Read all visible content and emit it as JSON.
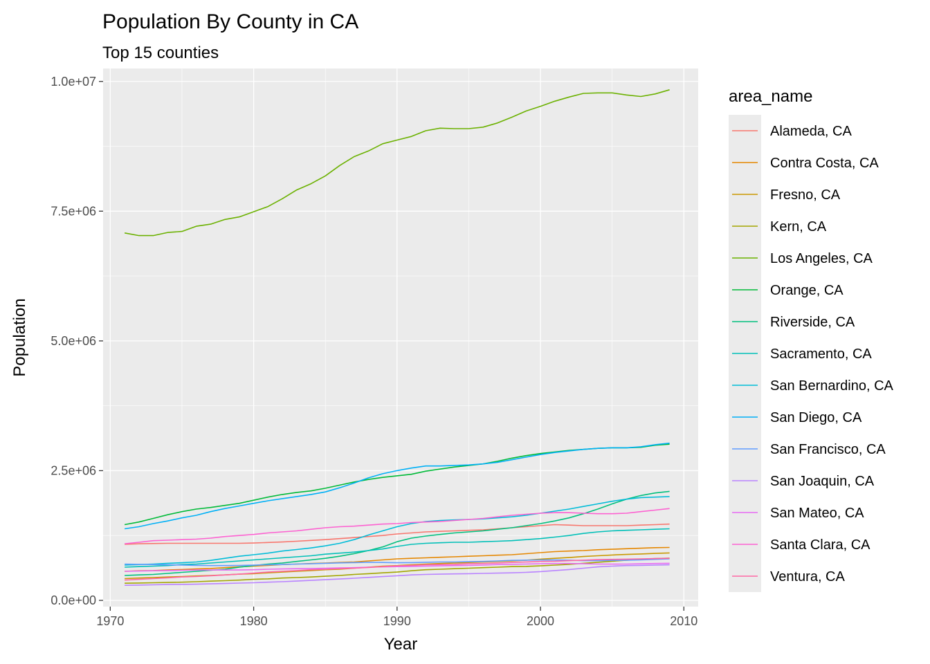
{
  "chart_data": {
    "type": "line",
    "title": "Population By County in CA",
    "subtitle": "Top 15 counties",
    "xlabel": "Year",
    "ylabel": "Population",
    "xlim": [
      1969.5,
      2011
    ],
    "ylim": [
      -120000,
      10250000
    ],
    "x_ticks": [
      1970,
      1980,
      1990,
      2000,
      2010
    ],
    "x_tick_labels": [
      "1970",
      "1980",
      "1990",
      "2000",
      "2010"
    ],
    "y_ticks": [
      0,
      2500000,
      5000000,
      7500000,
      10000000
    ],
    "y_tick_labels": [
      "0.0e+00",
      "2.5e+06",
      "5.0e+06",
      "7.5e+06",
      "1.0e+07"
    ],
    "grid": true,
    "background": "#ebebeb",
    "legend_title": "area_name",
    "legend_position": "right",
    "x": [
      1971,
      1972,
      1973,
      1974,
      1975,
      1976,
      1977,
      1978,
      1979,
      1980,
      1981,
      1982,
      1983,
      1984,
      1985,
      1986,
      1987,
      1988,
      1989,
      1990,
      1991,
      1992,
      1993,
      1994,
      1995,
      1996,
      1997,
      1998,
      1999,
      2000,
      2001,
      2002,
      2003,
      2004,
      2005,
      2006,
      2007,
      2008,
      2009
    ],
    "series": [
      {
        "name": "Alameda, CA",
        "color": "#F8766D",
        "values": [
          1080000,
          1090000,
          1095000,
          1100000,
          1100000,
          1100000,
          1100000,
          1100000,
          1100000,
          1105000,
          1115000,
          1125000,
          1140000,
          1155000,
          1170000,
          1190000,
          1210000,
          1230000,
          1250000,
          1280000,
          1300000,
          1320000,
          1330000,
          1340000,
          1350000,
          1360000,
          1380000,
          1400000,
          1420000,
          1440000,
          1460000,
          1450000,
          1440000,
          1440000,
          1440000,
          1440000,
          1450000,
          1460000,
          1470000
        ]
      },
      {
        "name": "Contra Costa, CA",
        "color": "#E58700",
        "values": [
          560000,
          570000,
          575000,
          585000,
          595000,
          605000,
          615000,
          630000,
          645000,
          660000,
          675000,
          690000,
          700000,
          710000,
          720000,
          730000,
          740000,
          760000,
          780000,
          800000,
          810000,
          820000,
          830000,
          840000,
          850000,
          860000,
          870000,
          880000,
          900000,
          920000,
          940000,
          950000,
          960000,
          975000,
          985000,
          995000,
          1005000,
          1015000,
          1020000
        ]
      },
      {
        "name": "Fresno, CA",
        "color": "#C99800",
        "values": [
          420000,
          430000,
          440000,
          450000,
          460000,
          470000,
          480000,
          490000,
          505000,
          515000,
          530000,
          545000,
          560000,
          575000,
          590000,
          600000,
          620000,
          640000,
          660000,
          670000,
          685000,
          700000,
          710000,
          720000,
          730000,
          740000,
          750000,
          760000,
          775000,
          795000,
          810000,
          825000,
          845000,
          860000,
          875000,
          885000,
          895000,
          905000,
          915000
        ]
      },
      {
        "name": "Kern, CA",
        "color": "#A3A500",
        "values": [
          330000,
          335000,
          340000,
          345000,
          350000,
          360000,
          370000,
          380000,
          390000,
          405000,
          415000,
          430000,
          440000,
          450000,
          465000,
          480000,
          500000,
          515000,
          530000,
          545000,
          570000,
          590000,
          600000,
          610000,
          620000,
          630000,
          640000,
          650000,
          655000,
          665000,
          680000,
          695000,
          715000,
          735000,
          755000,
          775000,
          790000,
          805000,
          815000
        ]
      },
      {
        "name": "Los Angeles, CA",
        "color": "#6BB100",
        "values": [
          7080000,
          7030000,
          7030000,
          7090000,
          7110000,
          7210000,
          7250000,
          7340000,
          7390000,
          7490000,
          7590000,
          7740000,
          7910000,
          8030000,
          8180000,
          8380000,
          8550000,
          8660000,
          8800000,
          8870000,
          8940000,
          9050000,
          9100000,
          9090000,
          9090000,
          9120000,
          9200000,
          9310000,
          9430000,
          9520000,
          9620000,
          9700000,
          9770000,
          9780000,
          9780000,
          9740000,
          9710000,
          9760000,
          9840000
        ]
      },
      {
        "name": "Orange, CA",
        "color": "#00BA38",
        "values": [
          1460000,
          1510000,
          1580000,
          1650000,
          1710000,
          1760000,
          1790000,
          1830000,
          1870000,
          1930000,
          1990000,
          2040000,
          2080000,
          2110000,
          2160000,
          2220000,
          2280000,
          2330000,
          2370000,
          2400000,
          2430000,
          2490000,
          2530000,
          2570000,
          2600000,
          2630000,
          2680000,
          2740000,
          2790000,
          2830000,
          2860000,
          2890000,
          2910000,
          2930000,
          2940000,
          2940000,
          2950000,
          2990000,
          3010000
        ]
      },
      {
        "name": "Riverside, CA",
        "color": "#00BF7D",
        "values": [
          480000,
          490000,
          500000,
          520000,
          540000,
          560000,
          580000,
          600000,
          640000,
          670000,
          700000,
          720000,
          750000,
          780000,
          810000,
          850000,
          900000,
          960000,
          1030000,
          1130000,
          1200000,
          1240000,
          1270000,
          1300000,
          1320000,
          1340000,
          1370000,
          1400000,
          1440000,
          1480000,
          1530000,
          1590000,
          1670000,
          1760000,
          1860000,
          1950000,
          2020000,
          2070000,
          2100000
        ]
      },
      {
        "name": "Sacramento, CA",
        "color": "#00C0B8",
        "values": [
          640000,
          650000,
          660000,
          670000,
          690000,
          700000,
          720000,
          740000,
          760000,
          780000,
          800000,
          820000,
          840000,
          860000,
          890000,
          910000,
          930000,
          960000,
          990000,
          1040000,
          1080000,
          1100000,
          1110000,
          1120000,
          1120000,
          1130000,
          1140000,
          1150000,
          1170000,
          1190000,
          1220000,
          1250000,
          1290000,
          1320000,
          1340000,
          1350000,
          1360000,
          1370000,
          1380000
        ]
      },
      {
        "name": "San Bernardino, CA",
        "color": "#00BCD8",
        "values": [
          680000,
          690000,
          700000,
          715000,
          725000,
          740000,
          770000,
          810000,
          850000,
          880000,
          910000,
          950000,
          980000,
          1010000,
          1050000,
          1100000,
          1170000,
          1260000,
          1340000,
          1420000,
          1480000,
          1520000,
          1540000,
          1550000,
          1560000,
          1570000,
          1590000,
          1610000,
          1640000,
          1680000,
          1720000,
          1760000,
          1810000,
          1860000,
          1910000,
          1950000,
          1980000,
          1990000,
          2000000
        ]
      },
      {
        "name": "San Diego, CA",
        "color": "#00B0F6",
        "values": [
          1380000,
          1420000,
          1480000,
          1530000,
          1590000,
          1640000,
          1710000,
          1770000,
          1820000,
          1870000,
          1920000,
          1960000,
          2000000,
          2040000,
          2090000,
          2170000,
          2260000,
          2360000,
          2440000,
          2500000,
          2550000,
          2590000,
          2590000,
          2600000,
          2610000,
          2630000,
          2660000,
          2710000,
          2760000,
          2810000,
          2850000,
          2880000,
          2910000,
          2930000,
          2940000,
          2940000,
          2960000,
          3000000,
          3030000
        ]
      },
      {
        "name": "San Francisco, CA",
        "color": "#619CFF",
        "values": [
          700000,
          695000,
          690000,
          685000,
          680000,
          675000,
          670000,
          670000,
          672000,
          678000,
          685000,
          690000,
          700000,
          705000,
          715000,
          722000,
          728000,
          733000,
          730000,
          725000,
          728000,
          735000,
          740000,
          740000,
          745000,
          750000,
          760000,
          770000,
          775000,
          778000,
          780000,
          775000,
          765000,
          765000,
          770000,
          775000,
          780000,
          790000,
          800000
        ]
      },
      {
        "name": "San Joaquin, CA",
        "color": "#B983FF",
        "values": [
          290000,
          295000,
          300000,
          305000,
          308000,
          312000,
          318000,
          325000,
          333000,
          340000,
          350000,
          360000,
          372000,
          385000,
          398000,
          412000,
          427000,
          443000,
          458000,
          475000,
          490000,
          500000,
          505000,
          510000,
          515000,
          520000,
          525000,
          530000,
          540000,
          555000,
          575000,
          595000,
          620000,
          645000,
          660000,
          670000,
          675000,
          680000,
          685000
        ]
      },
      {
        "name": "San Mateo, CA",
        "color": "#E76BF3",
        "values": [
          560000,
          565000,
          570000,
          575000,
          580000,
          585000,
          585000,
          585000,
          585000,
          590000,
          600000,
          605000,
          610000,
          615000,
          620000,
          625000,
          630000,
          640000,
          645000,
          650000,
          655000,
          660000,
          665000,
          670000,
          675000,
          680000,
          690000,
          695000,
          700000,
          705000,
          710000,
          710000,
          705000,
          700000,
          698000,
          700000,
          705000,
          710000,
          715000
        ]
      },
      {
        "name": "Santa Clara, CA",
        "color": "#FD61D1",
        "values": [
          1090000,
          1120000,
          1150000,
          1160000,
          1170000,
          1180000,
          1200000,
          1230000,
          1250000,
          1270000,
          1300000,
          1320000,
          1340000,
          1370000,
          1400000,
          1420000,
          1430000,
          1450000,
          1470000,
          1480000,
          1500000,
          1510000,
          1520000,
          1540000,
          1560000,
          1580000,
          1610000,
          1640000,
          1660000,
          1680000,
          1690000,
          1690000,
          1680000,
          1670000,
          1670000,
          1680000,
          1710000,
          1740000,
          1770000
        ]
      },
      {
        "name": "Ventura, CA",
        "color": "#FF67A4",
        "values": [
          390000,
          405000,
          420000,
          435000,
          450000,
          460000,
          475000,
          490000,
          505000,
          525000,
          545000,
          560000,
          575000,
          590000,
          600000,
          610000,
          620000,
          635000,
          650000,
          665000,
          675000,
          685000,
          690000,
          695000,
          705000,
          710000,
          720000,
          730000,
          740000,
          750000,
          755000,
          765000,
          775000,
          785000,
          790000,
          795000,
          800000,
          805000,
          810000
        ]
      }
    ]
  }
}
